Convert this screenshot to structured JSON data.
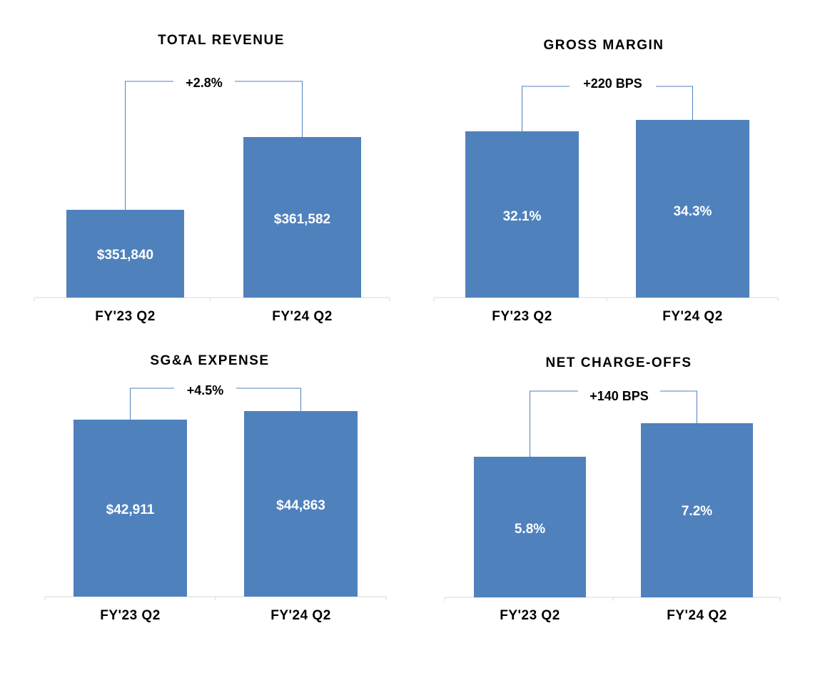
{
  "colors": {
    "bar": "#4f81bd",
    "bar_label": "#ffffff",
    "bracket": "#4f81bd",
    "axis": "#d9d9d9"
  },
  "chart_data": [
    {
      "type": "bar",
      "title": "TOTAL REVENUE",
      "categories": [
        "FY'23 Q2",
        "FY'24 Q2"
      ],
      "values": [
        351840,
        361582
      ],
      "value_labels": [
        "$351,840",
        "$361,582"
      ],
      "change_label": "+2.8%",
      "xlabel": "",
      "ylabel": ""
    },
    {
      "type": "bar",
      "title": "GROSS MARGIN",
      "categories": [
        "FY'23  Q2",
        "FY'24  Q2"
      ],
      "values": [
        32.1,
        34.3
      ],
      "value_labels": [
        "32.1%",
        "34.3%"
      ],
      "change_label": "+220 BPS",
      "xlabel": "",
      "ylabel": ""
    },
    {
      "type": "bar",
      "title": "SG&A  EXPENSE",
      "categories": [
        "FY'23  Q2",
        "FY'24  Q2"
      ],
      "values": [
        42911,
        44863
      ],
      "value_labels": [
        "$42,911",
        "$44,863"
      ],
      "change_label": "+4.5%",
      "xlabel": "",
      "ylabel": ""
    },
    {
      "type": "bar",
      "title": "NET CHARGE-OFFS",
      "categories": [
        "FY'23  Q2",
        "FY'24  Q2"
      ],
      "values": [
        5.8,
        7.2
      ],
      "value_labels": [
        "5.8%",
        "7.2%"
      ],
      "change_label": "+140 BPS",
      "xlabel": "",
      "ylabel": ""
    }
  ]
}
